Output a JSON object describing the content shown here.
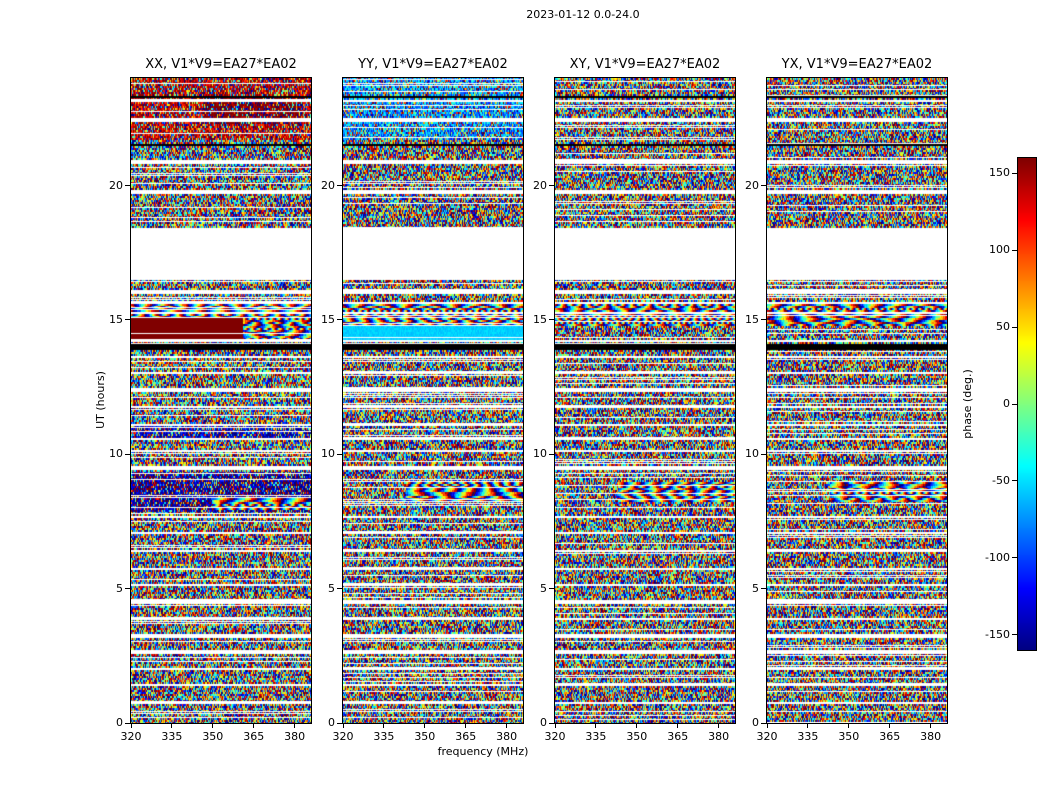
{
  "chart_data": {
    "type": "heatmap",
    "title": "2023-01-12 0.0-24.0",
    "xlabel": "frequency (MHz)",
    "ylabel": "UT (hours)",
    "colorbar_label": "phase (deg.)",
    "colormap": "jet",
    "xlim": [
      320,
      386
    ],
    "ylim": [
      0,
      24
    ],
    "xticks": [
      320,
      335,
      350,
      365,
      380
    ],
    "yticks": [
      0,
      5,
      10,
      15,
      20
    ],
    "colorbar": {
      "vmin": -160,
      "vmax": 160,
      "ticks": [
        150,
        100,
        50,
        0,
        -50,
        -100,
        -150
      ]
    },
    "panels": [
      {
        "id": "XX",
        "title": "XX, V1*V9=EA27*EA02"
      },
      {
        "id": "YY",
        "title": "YY, V1*V9=EA27*EA02"
      },
      {
        "id": "XY",
        "title": "XY, V1*V9=EA27*EA02"
      },
      {
        "id": "YX",
        "title": "YX, V1*V9=EA27*EA02"
      }
    ],
    "time_gaps": [
      [
        16.45,
        18.45
      ],
      [
        19.7,
        19.82
      ],
      [
        20.82,
        20.93
      ],
      [
        22.4,
        22.48
      ],
      [
        23.1,
        23.16
      ],
      [
        15.95,
        16.08
      ],
      [
        15.62,
        15.7
      ],
      [
        15.25,
        15.33
      ],
      [
        14.18,
        14.28
      ],
      [
        13.55,
        13.63
      ],
      [
        12.95,
        13.03
      ],
      [
        12.35,
        12.44
      ],
      [
        11.7,
        11.78
      ],
      [
        11.08,
        11.16
      ],
      [
        10.55,
        10.62
      ],
      [
        10.08,
        10.16
      ],
      [
        9.45,
        9.55
      ],
      [
        7.62,
        7.7
      ],
      [
        7.0,
        7.08
      ],
      [
        6.35,
        6.44
      ],
      [
        5.72,
        5.8
      ],
      [
        5.1,
        5.18
      ],
      [
        4.45,
        4.55
      ],
      [
        3.85,
        3.93
      ],
      [
        3.2,
        3.3
      ],
      [
        2.6,
        2.68
      ],
      [
        1.95,
        2.05
      ],
      [
        1.35,
        1.43
      ],
      [
        0.7,
        0.8
      ],
      [
        0.15,
        0.22
      ]
    ],
    "flagged_black_bands": [
      [
        13.85,
        14.12
      ],
      [
        21.5,
        21.58
      ],
      [
        23.28,
        23.34
      ]
    ],
    "features": {
      "XX": [
        {
          "t": [
            14.15,
            15.1
          ],
          "x": [
            0,
            0.62
          ],
          "mode": "solid",
          "value": 172
        },
        {
          "t": [
            14.15,
            15.7
          ],
          "x": [
            0,
            1
          ],
          "mode": "fringe"
        },
        {
          "t": [
            22.3,
            23.3
          ],
          "x": [
            0.4,
            0.95
          ],
          "mode": "bias",
          "value": 165,
          "spread": 50,
          "mix": 0.7
        },
        {
          "t": [
            21.7,
            24
          ],
          "x": [
            0,
            1
          ],
          "mode": "bias",
          "value": 140,
          "spread": 90,
          "mix": 0.55
        },
        {
          "t": [
            7.9,
            8.35
          ],
          "x": [
            0.45,
            1
          ],
          "mode": "fringe"
        },
        {
          "t": [
            7.85,
            9.35
          ],
          "x": [
            0,
            1
          ],
          "mode": "bias",
          "value": -155,
          "spread": 80,
          "mix": 0.6
        },
        {
          "t": [
            10.6,
            11.05
          ],
          "x": [
            0,
            1
          ],
          "mode": "bias",
          "value": -140,
          "spread": 80,
          "mix": 0.5
        }
      ],
      "YY": [
        {
          "t": [
            14.15,
            14.75
          ],
          "x": [
            0,
            1
          ],
          "mode": "solid",
          "value": -55
        },
        {
          "t": [
            14.75,
            15.7
          ],
          "x": [
            0,
            1
          ],
          "mode": "fringe"
        },
        {
          "t": [
            8.25,
            8.95
          ],
          "x": [
            0.35,
            1
          ],
          "mode": "fringe"
        },
        {
          "t": [
            21.7,
            24
          ],
          "x": [
            0,
            1
          ],
          "mode": "bias",
          "value": -70,
          "spread": 90,
          "mix": 0.55
        }
      ],
      "XY": [
        {
          "t": [
            14.75,
            15.7
          ],
          "x": [
            0,
            1
          ],
          "mode": "fringe"
        },
        {
          "t": [
            8.25,
            8.95
          ],
          "x": [
            0.35,
            1
          ],
          "mode": "fringe"
        }
      ],
      "YX": [
        {
          "t": [
            14.75,
            15.7
          ],
          "x": [
            0,
            1
          ],
          "mode": "fringe"
        },
        {
          "t": [
            8.25,
            8.95
          ],
          "x": [
            0.35,
            1
          ],
          "mode": "fringe"
        }
      ]
    }
  }
}
